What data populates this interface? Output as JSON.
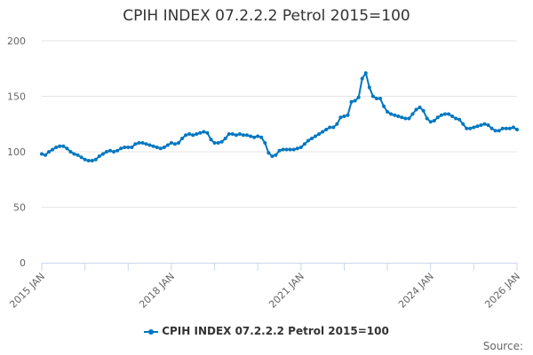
{
  "chart_data": {
    "type": "line",
    "title": "CPIH INDEX 07.2.2.2 Petrol 2015=100",
    "xlabel": "",
    "ylabel": "",
    "ylim": [
      0,
      200
    ],
    "yticks": [
      "0",
      "50",
      "100",
      "150",
      "200"
    ],
    "x_start": "2015 JAN",
    "x_end": "2026 JAN",
    "xtick_labels": [
      "2015 JAN",
      "2018 JAN",
      "2021 JAN",
      "2024 JAN",
      "2026 JAN"
    ],
    "grid": true,
    "legend": "bottom",
    "color": "#0077c0",
    "series": [
      {
        "name": "CPIH INDEX 07.2.2.2 Petrol 2015=100",
        "values": [
          98,
          97,
          100,
          102,
          104,
          105,
          105,
          103,
          100,
          98,
          97,
          95,
          93,
          92,
          92,
          93,
          96,
          98,
          100,
          101,
          100,
          101,
          103,
          104,
          104,
          104,
          107,
          108,
          108,
          107,
          106,
          105,
          104,
          103,
          104,
          106,
          108,
          107,
          108,
          112,
          115,
          116,
          115,
          116,
          117,
          118,
          117,
          111,
          108,
          108,
          109,
          112,
          116,
          116,
          115,
          116,
          115,
          115,
          114,
          113,
          114,
          113,
          108,
          99,
          96,
          97,
          101,
          102,
          102,
          102,
          102,
          103,
          104,
          107,
          110,
          112,
          114,
          116,
          118,
          120,
          122,
          122,
          125,
          131,
          132,
          133,
          145,
          146,
          149,
          166,
          171,
          158,
          150,
          148,
          148,
          141,
          136,
          134,
          133,
          132,
          131,
          130,
          130,
          134,
          138,
          140,
          137,
          130,
          127,
          128,
          131,
          133,
          134,
          134,
          132,
          130,
          129,
          125,
          121,
          121,
          122,
          123,
          124,
          125,
          124,
          121,
          119,
          119,
          121,
          121,
          121,
          122,
          120
        ]
      }
    ]
  },
  "source_label": "Source:"
}
